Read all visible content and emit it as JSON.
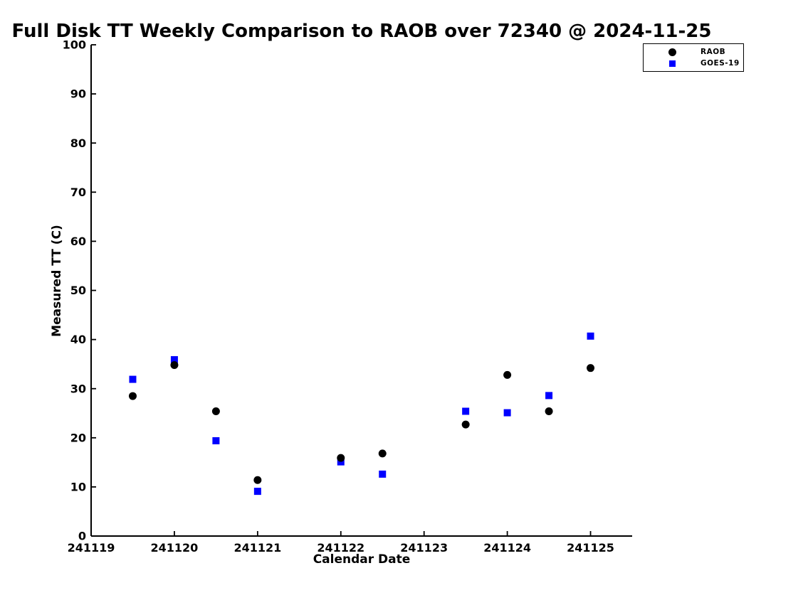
{
  "figure": {
    "background_color": "#ffffff",
    "text_color": "#000000"
  },
  "chart_data": {
    "type": "scatter",
    "title": "Full Disk TT Weekly Comparison to RAOB over 72340 @ 2024-11-25",
    "xlabel": "Calendar Date",
    "ylabel": "Measured TT (C)",
    "xlim": [
      241119,
      241125.5
    ],
    "ylim": [
      0,
      100
    ],
    "xticks": [
      241119,
      241120,
      241121,
      241122,
      241123,
      241124,
      241125
    ],
    "yticks": [
      0,
      10,
      20,
      30,
      40,
      50,
      60,
      70,
      80,
      90,
      100
    ],
    "grid": false,
    "legend_position": "upper-right",
    "series": [
      {
        "name": "RAOB",
        "marker": "circle",
        "color": "#000000",
        "data": [
          [
            241119.5,
            28.5
          ],
          [
            241120.0,
            34.8
          ],
          [
            241120.5,
            25.4
          ],
          [
            241121.0,
            11.4
          ],
          [
            241122.0,
            15.9
          ],
          [
            241122.5,
            16.8
          ],
          [
            241123.5,
            22.7
          ],
          [
            241124.0,
            32.8
          ],
          [
            241124.5,
            25.4
          ],
          [
            241125.0,
            34.2
          ]
        ]
      },
      {
        "name": "GOES-19",
        "marker": "square",
        "color": "#0000ff",
        "data": [
          [
            241119.5,
            31.9
          ],
          [
            241120.0,
            35.9
          ],
          [
            241120.5,
            19.4
          ],
          [
            241121.0,
            9.1
          ],
          [
            241122.0,
            15.1
          ],
          [
            241122.5,
            12.6
          ],
          [
            241123.5,
            25.4
          ],
          [
            241124.0,
            25.1
          ],
          [
            241124.5,
            28.6
          ],
          [
            241125.0,
            40.7
          ]
        ]
      }
    ]
  }
}
